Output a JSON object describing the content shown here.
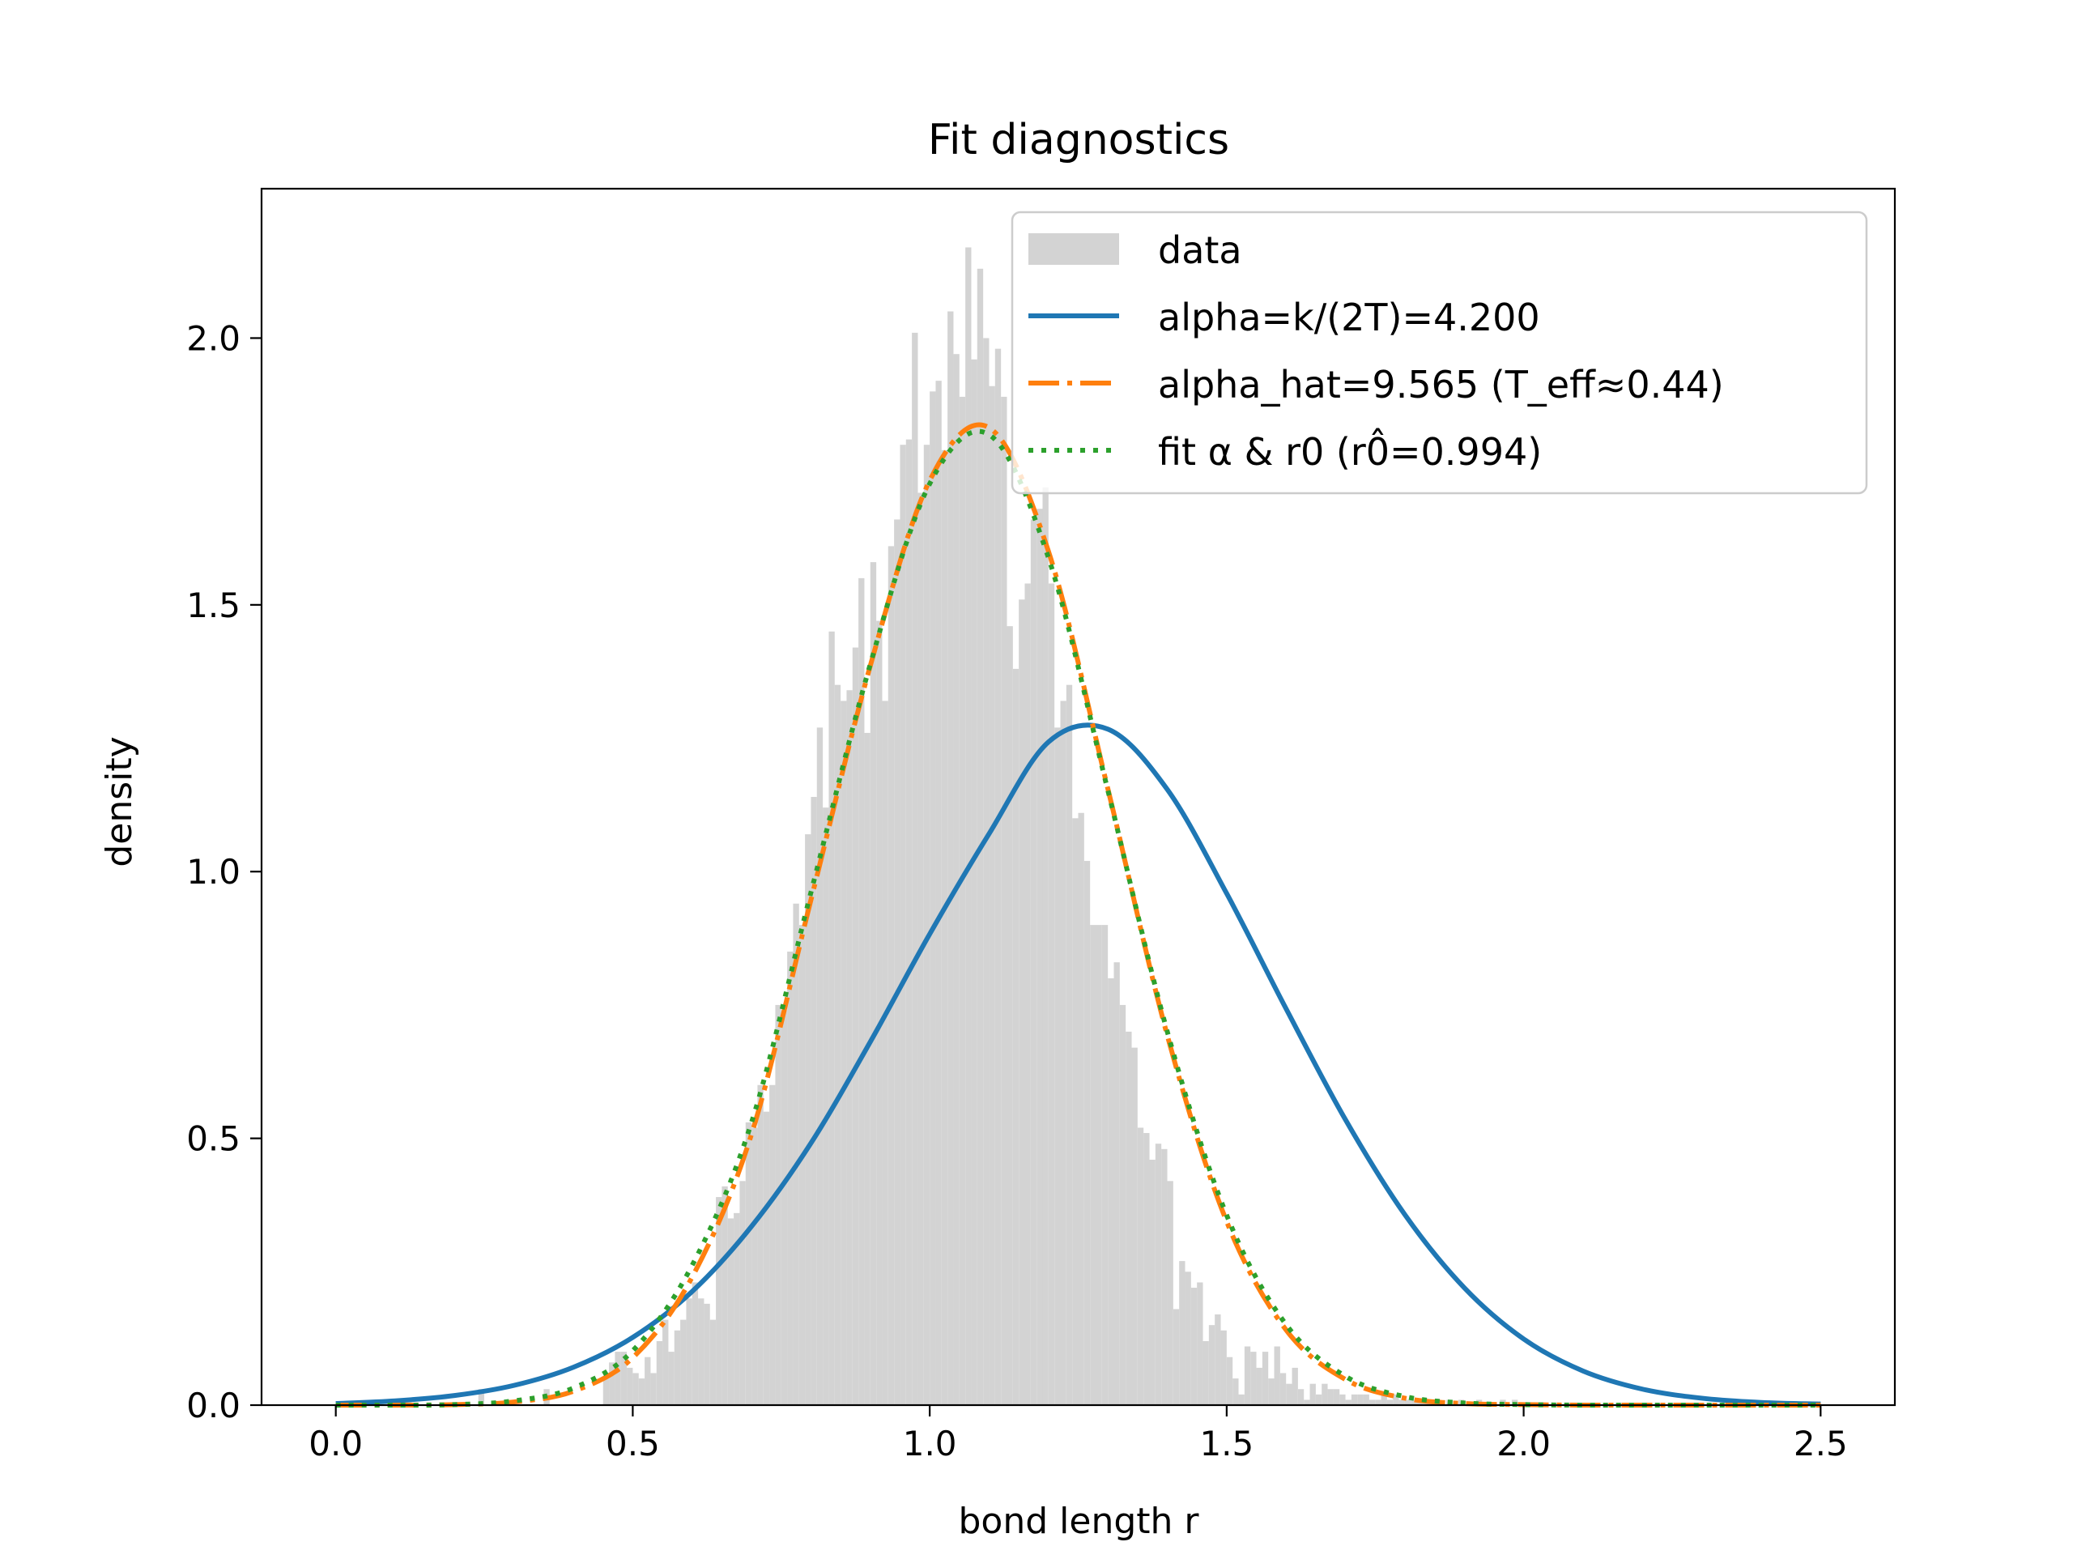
{
  "chart_data": {
    "type": "histogram_with_lines",
    "title": "Fit diagnostics",
    "xlabel": "bond length r",
    "ylabel": "density",
    "xlim": [
      -0.125,
      2.625
    ],
    "ylim": [
      0,
      2.28
    ],
    "xticks": [
      0.0,
      0.5,
      1.0,
      1.5,
      2.0,
      2.5
    ],
    "xtick_labels": [
      "0.0",
      "0.5",
      "1.0",
      "1.5",
      "2.0",
      "2.5"
    ],
    "yticks": [
      0.0,
      0.5,
      1.0,
      1.5,
      2.0
    ],
    "ytick_labels": [
      "0.0",
      "0.5",
      "1.0",
      "1.5",
      "2.0"
    ],
    "grid": false,
    "legend_position": "top-right",
    "histogram": {
      "name": "data",
      "color": "#d3d3d3",
      "bin_width": 0.01,
      "x": [
        0.245,
        0.355,
        0.455,
        0.465,
        0.475,
        0.485,
        0.495,
        0.505,
        0.515,
        0.525,
        0.535,
        0.545,
        0.555,
        0.565,
        0.575,
        0.585,
        0.595,
        0.605,
        0.615,
        0.625,
        0.635,
        0.645,
        0.655,
        0.665,
        0.675,
        0.685,
        0.695,
        0.705,
        0.715,
        0.725,
        0.735,
        0.745,
        0.755,
        0.765,
        0.775,
        0.785,
        0.795,
        0.805,
        0.815,
        0.825,
        0.835,
        0.845,
        0.855,
        0.865,
        0.875,
        0.885,
        0.895,
        0.905,
        0.915,
        0.925,
        0.935,
        0.945,
        0.955,
        0.965,
        0.975,
        0.985,
        0.995,
        1.005,
        1.015,
        1.025,
        1.035,
        1.045,
        1.055,
        1.065,
        1.075,
        1.085,
        1.095,
        1.105,
        1.115,
        1.125,
        1.135,
        1.145,
        1.155,
        1.165,
        1.175,
        1.185,
        1.195,
        1.205,
        1.215,
        1.225,
        1.235,
        1.245,
        1.255,
        1.265,
        1.275,
        1.285,
        1.295,
        1.305,
        1.315,
        1.325,
        1.335,
        1.345,
        1.355,
        1.365,
        1.375,
        1.385,
        1.395,
        1.405,
        1.415,
        1.425,
        1.435,
        1.445,
        1.455,
        1.465,
        1.475,
        1.485,
        1.495,
        1.505,
        1.515,
        1.525,
        1.535,
        1.545,
        1.555,
        1.565,
        1.575,
        1.585,
        1.595,
        1.605,
        1.615,
        1.625,
        1.635,
        1.645,
        1.655,
        1.665,
        1.675,
        1.685,
        1.695,
        1.705,
        1.715,
        1.725,
        1.735,
        1.745,
        1.755,
        1.765,
        1.775,
        1.785,
        1.795,
        1.805,
        1.815,
        1.825,
        1.835,
        1.845,
        1.855,
        1.865,
        1.875,
        1.885,
        1.895,
        1.905,
        1.915,
        1.925,
        1.935,
        1.945,
        1.955,
        1.965,
        1.975,
        1.985
      ],
      "values": [
        0.03,
        0.03,
        0.05,
        0.08,
        0.1,
        0.1,
        0.07,
        0.06,
        0.05,
        0.09,
        0.06,
        0.12,
        0.16,
        0.1,
        0.14,
        0.16,
        0.2,
        0.23,
        0.2,
        0.19,
        0.16,
        0.39,
        0.41,
        0.35,
        0.36,
        0.42,
        0.53,
        0.52,
        0.6,
        0.55,
        0.6,
        0.75,
        0.74,
        0.85,
        0.94,
        0.9,
        1.07,
        1.14,
        1.27,
        1.12,
        1.45,
        1.35,
        1.32,
        1.34,
        1.42,
        1.55,
        1.26,
        1.58,
        1.47,
        1.32,
        1.61,
        1.66,
        1.8,
        1.81,
        2.01,
        1.71,
        1.8,
        1.9,
        1.92,
        1.79,
        2.05,
        1.97,
        1.89,
        2.17,
        1.96,
        2.13,
        2.0,
        1.91,
        1.98,
        1.89,
        1.46,
        1.38,
        1.51,
        1.54,
        1.66,
        1.68,
        1.72,
        1.54,
        1.27,
        1.32,
        1.35,
        1.1,
        1.11,
        1.02,
        0.9,
        0.9,
        0.9,
        0.8,
        0.83,
        0.75,
        0.7,
        0.67,
        0.52,
        0.51,
        0.46,
        0.49,
        0.48,
        0.42,
        0.18,
        0.27,
        0.25,
        0.22,
        0.23,
        0.12,
        0.15,
        0.17,
        0.14,
        0.09,
        0.05,
        0.02,
        0.11,
        0.1,
        0.07,
        0.1,
        0.05,
        0.11,
        0.06,
        0.04,
        0.07,
        0.03,
        0.01,
        0.04,
        0.02,
        0.04,
        0.03,
        0.03,
        0.02,
        0.01,
        0.02,
        0.02,
        0.02,
        0.01,
        0.01,
        0.02,
        0.01,
        0.02,
        0.01,
        0.01,
        0.01,
        0.01,
        0.01,
        0.01,
        0.01,
        0.0,
        0.01,
        0.0,
        0.01,
        0.0,
        0.0,
        0.01,
        0.0,
        0.0,
        0.0,
        0.01,
        0.0,
        0.01
      ]
    },
    "series": [
      {
        "name": "alpha=k/(2T)=4.200",
        "style": "solid",
        "color": "#1f77b4",
        "x": [
          0.0,
          0.1,
          0.2,
          0.3,
          0.4,
          0.5,
          0.6,
          0.7,
          0.8,
          0.9,
          1.0,
          1.1,
          1.2,
          1.3,
          1.4,
          1.5,
          1.6,
          1.7,
          1.8,
          1.9,
          2.0,
          2.1,
          2.2,
          2.3,
          2.4,
          2.5
        ],
        "y": [
          0.003,
          0.008,
          0.018,
          0.037,
          0.071,
          0.127,
          0.213,
          0.335,
          0.491,
          0.681,
          0.883,
          1.071,
          1.243,
          1.267,
          1.154,
          0.959,
          0.743,
          0.535,
          0.357,
          0.22,
          0.124,
          0.064,
          0.03,
          0.013,
          0.005,
          0.002
        ]
      },
      {
        "name": "alpha_hat=9.565 (T_eff≈0.44)",
        "style": "dashdot",
        "color": "#ff7f0e",
        "x": [
          0.0,
          0.1,
          0.2,
          0.3,
          0.4,
          0.5,
          0.6,
          0.7,
          0.8,
          0.9,
          1.0,
          1.1,
          1.2,
          1.3,
          1.4,
          1.5,
          1.6,
          1.7,
          1.8,
          1.9,
          2.0,
          2.1,
          2.2,
          2.3,
          2.4,
          2.5
        ],
        "y": [
          0.0,
          0.0,
          0.001,
          0.006,
          0.026,
          0.089,
          0.24,
          0.508,
          0.947,
          1.386,
          1.733,
          1.832,
          1.6,
          1.155,
          0.693,
          0.344,
          0.141,
          0.048,
          0.013,
          0.003,
          0.001,
          0.0,
          0.0,
          0.0,
          0.0,
          0.0
        ]
      },
      {
        "name": "fit α & r0 (r0̂=0.994)",
        "style": "dotted",
        "color": "#2ca02c",
        "x": [
          0.0,
          0.1,
          0.2,
          0.3,
          0.4,
          0.5,
          0.6,
          0.7,
          0.8,
          0.9,
          1.0,
          1.1,
          1.2,
          1.3,
          1.4,
          1.5,
          1.6,
          1.7,
          1.8,
          1.9,
          2.0,
          2.1,
          2.2,
          2.3,
          2.4,
          2.5
        ],
        "y": [
          0.0,
          0.0,
          0.001,
          0.008,
          0.032,
          0.102,
          0.262,
          0.53,
          0.961,
          1.389,
          1.727,
          1.819,
          1.588,
          1.152,
          0.7,
          0.356,
          0.151,
          0.054,
          0.016,
          0.004,
          0.001,
          0.0,
          0.0,
          0.0,
          0.0,
          0.0
        ]
      }
    ]
  }
}
